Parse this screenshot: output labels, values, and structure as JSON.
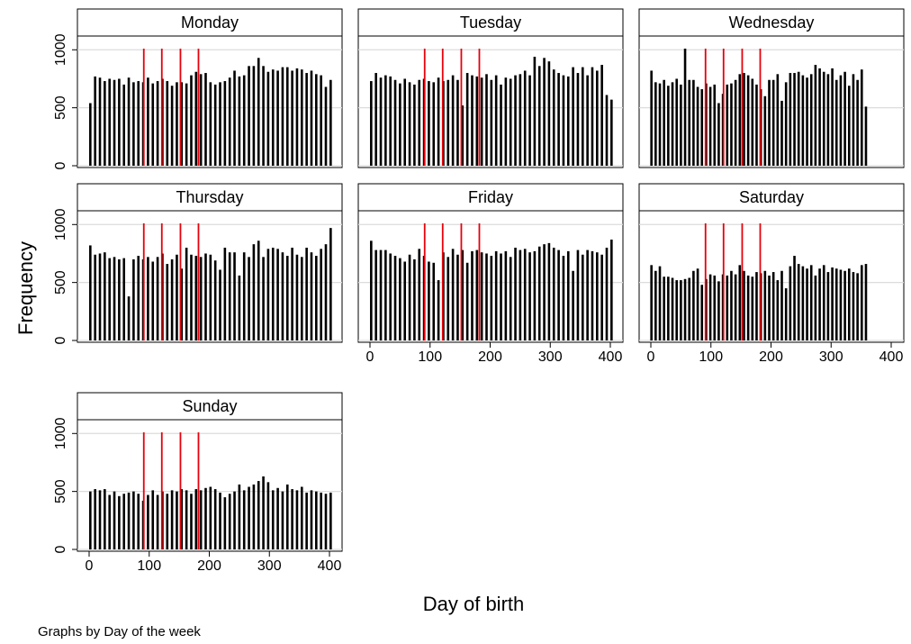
{
  "chart_data": [
    {
      "type": "bar",
      "title": "Monday",
      "color": "#000000",
      "xlim": [
        0,
        400
      ],
      "ylim": [
        0,
        1010
      ],
      "yticks": [
        0,
        500,
        1000
      ],
      "ytick_labels": true,
      "grid": true,
      "vlines": [
        91,
        121,
        152,
        182
      ],
      "vline_color": "#e8000b",
      "x": [
        2,
        10,
        18,
        26,
        34,
        42,
        50,
        58,
        66,
        74,
        82,
        90,
        98,
        106,
        114,
        122,
        130,
        138,
        146,
        154,
        162,
        170,
        178,
        186,
        194,
        202,
        210,
        218,
        226,
        234,
        242,
        250,
        258,
        266,
        274,
        282,
        290,
        298,
        306,
        314,
        322,
        330,
        338,
        346,
        354,
        362,
        370,
        378,
        386,
        394,
        402
      ],
      "values": [
        540,
        770,
        760,
        730,
        750,
        740,
        750,
        700,
        760,
        720,
        730,
        720,
        760,
        710,
        730,
        750,
        730,
        690,
        720,
        720,
        710,
        780,
        810,
        790,
        800,
        720,
        700,
        720,
        730,
        760,
        820,
        770,
        780,
        860,
        860,
        930,
        860,
        810,
        830,
        820,
        850,
        850,
        820,
        840,
        830,
        800,
        820,
        790,
        780,
        680,
        740
      ]
    },
    {
      "type": "bar",
      "title": "Tuesday",
      "color": "#000000",
      "xlim": [
        0,
        400
      ],
      "ylim": [
        0,
        1010
      ],
      "yticks": [
        0,
        500,
        1000
      ],
      "ytick_labels": false,
      "grid": true,
      "vlines": [
        91,
        121,
        152,
        182
      ],
      "vline_color": "#e8000b",
      "x": [
        2,
        10,
        18,
        26,
        34,
        42,
        50,
        58,
        66,
        74,
        82,
        90,
        98,
        106,
        114,
        122,
        130,
        138,
        146,
        154,
        162,
        170,
        178,
        186,
        194,
        202,
        210,
        218,
        226,
        234,
        242,
        250,
        258,
        266,
        274,
        282,
        290,
        298,
        306,
        314,
        322,
        330,
        338,
        346,
        354,
        362,
        370,
        378,
        386,
        394,
        402
      ],
      "values": [
        730,
        800,
        760,
        780,
        770,
        740,
        710,
        750,
        720,
        700,
        740,
        750,
        730,
        720,
        760,
        730,
        740,
        780,
        740,
        520,
        800,
        780,
        770,
        760,
        790,
        740,
        780,
        700,
        760,
        750,
        780,
        790,
        820,
        780,
        940,
        860,
        930,
        900,
        830,
        800,
        780,
        770,
        850,
        800,
        850,
        780,
        850,
        820,
        870,
        610,
        570
      ]
    },
    {
      "type": "bar",
      "title": "Wednesday",
      "color": "#000000",
      "xlim": [
        0,
        400
      ],
      "ylim": [
        0,
        1010
      ],
      "yticks": [
        0,
        500,
        1000
      ],
      "ytick_labels": false,
      "grid": true,
      "vlines": [
        91,
        121,
        152,
        182
      ],
      "vline_color": "#e8000b",
      "x": [
        1,
        8,
        15,
        22,
        29,
        36,
        43,
        50,
        57,
        64,
        71,
        78,
        85,
        92,
        99,
        106,
        113,
        120,
        127,
        134,
        141,
        148,
        155,
        162,
        169,
        176,
        183,
        190,
        197,
        204,
        211,
        218,
        225,
        232,
        239,
        246,
        253,
        260,
        267,
        274,
        281,
        288,
        295,
        302,
        309,
        316,
        323,
        330,
        337,
        344,
        351,
        358
      ],
      "values": [
        820,
        720,
        710,
        740,
        690,
        720,
        750,
        700,
        1010,
        740,
        740,
        680,
        660,
        710,
        680,
        700,
        540,
        620,
        700,
        710,
        740,
        790,
        800,
        780,
        750,
        700,
        660,
        600,
        740,
        740,
        790,
        560,
        720,
        800,
        800,
        810,
        780,
        760,
        790,
        870,
        840,
        810,
        790,
        840,
        740,
        780,
        810,
        690,
        790,
        740,
        830,
        510
      ]
    },
    {
      "type": "bar",
      "title": "Thursday",
      "color": "#000000",
      "xlim": [
        0,
        400
      ],
      "ylim": [
        0,
        1010
      ],
      "yticks": [
        0,
        500,
        1000
      ],
      "ytick_labels": true,
      "grid": true,
      "vlines": [
        91,
        121,
        152,
        182
      ],
      "vline_color": "#e8000b",
      "x": [
        2,
        10,
        18,
        26,
        34,
        42,
        50,
        58,
        66,
        74,
        82,
        90,
        98,
        106,
        114,
        122,
        130,
        138,
        146,
        154,
        162,
        170,
        178,
        186,
        194,
        202,
        210,
        218,
        226,
        234,
        242,
        250,
        258,
        266,
        274,
        282,
        290,
        298,
        306,
        314,
        322,
        330,
        338,
        346,
        354,
        362,
        370,
        378,
        386,
        394,
        402
      ],
      "values": [
        820,
        740,
        750,
        760,
        710,
        720,
        700,
        710,
        380,
        700,
        730,
        700,
        720,
        680,
        720,
        750,
        660,
        700,
        740,
        620,
        800,
        740,
        730,
        720,
        750,
        740,
        690,
        610,
        800,
        760,
        760,
        560,
        760,
        720,
        830,
        860,
        720,
        790,
        800,
        790,
        760,
        730,
        800,
        740,
        720,
        800,
        760,
        730,
        790,
        830,
        970
      ]
    },
    {
      "type": "bar",
      "title": "Friday",
      "color": "#000000",
      "xlim": [
        0,
        400
      ],
      "ylim": [
        0,
        1010
      ],
      "yticks": [
        0,
        500,
        1000
      ],
      "ytick_labels": false,
      "xticks": [
        0,
        100,
        200,
        300,
        400
      ],
      "grid": true,
      "vlines": [
        91,
        121,
        152,
        182
      ],
      "vline_color": "#e8000b",
      "x": [
        2,
        10,
        18,
        26,
        34,
        42,
        50,
        58,
        66,
        74,
        82,
        90,
        98,
        106,
        114,
        122,
        130,
        138,
        146,
        154,
        162,
        170,
        178,
        186,
        194,
        202,
        210,
        218,
        226,
        234,
        242,
        250,
        258,
        266,
        274,
        282,
        290,
        298,
        306,
        314,
        322,
        330,
        338,
        346,
        354,
        362,
        370,
        378,
        386,
        394,
        402
      ],
      "values": [
        860,
        780,
        780,
        780,
        750,
        730,
        710,
        680,
        740,
        700,
        790,
        730,
        680,
        670,
        520,
        760,
        720,
        790,
        740,
        780,
        670,
        770,
        780,
        760,
        750,
        730,
        770,
        750,
        770,
        720,
        800,
        780,
        790,
        760,
        770,
        810,
        830,
        840,
        800,
        780,
        730,
        770,
        600,
        780,
        740,
        780,
        770,
        760,
        740,
        800,
        870
      ]
    },
    {
      "type": "bar",
      "title": "Saturday",
      "color": "#000000",
      "xlim": [
        0,
        400
      ],
      "ylim": [
        0,
        1010
      ],
      "yticks": [
        0,
        500,
        1000
      ],
      "ytick_labels": false,
      "xticks": [
        0,
        100,
        200,
        300,
        400
      ],
      "grid": true,
      "vlines": [
        91,
        121,
        152,
        182
      ],
      "vline_color": "#e8000b",
      "x": [
        1,
        8,
        15,
        22,
        29,
        36,
        43,
        50,
        57,
        64,
        71,
        78,
        85,
        92,
        99,
        106,
        113,
        120,
        127,
        134,
        141,
        148,
        155,
        162,
        169,
        176,
        183,
        190,
        197,
        204,
        211,
        218,
        225,
        232,
        239,
        246,
        253,
        260,
        267,
        274,
        281,
        288,
        295,
        302,
        309,
        316,
        323,
        330,
        337,
        344,
        351,
        358
      ],
      "values": [
        650,
        600,
        640,
        550,
        550,
        540,
        520,
        520,
        530,
        540,
        600,
        620,
        480,
        530,
        570,
        560,
        510,
        570,
        560,
        600,
        570,
        650,
        600,
        560,
        550,
        590,
        580,
        600,
        560,
        590,
        520,
        600,
        450,
        640,
        730,
        660,
        640,
        620,
        650,
        560,
        620,
        650,
        590,
        630,
        620,
        610,
        600,
        620,
        590,
        580,
        650,
        660
      ]
    },
    {
      "type": "bar",
      "title": "Sunday",
      "color": "#000000",
      "xlim": [
        0,
        400
      ],
      "ylim": [
        0,
        1010
      ],
      "yticks": [
        0,
        500,
        1000
      ],
      "ytick_labels": true,
      "xticks": [
        0,
        100,
        200,
        300,
        400
      ],
      "grid": true,
      "vlines": [
        91,
        121,
        152,
        182
      ],
      "vline_color": "#e8000b",
      "x": [
        2,
        10,
        18,
        26,
        34,
        42,
        50,
        58,
        66,
        74,
        82,
        90,
        98,
        106,
        114,
        122,
        130,
        138,
        146,
        154,
        162,
        170,
        178,
        186,
        194,
        202,
        210,
        218,
        226,
        234,
        242,
        250,
        258,
        266,
        274,
        282,
        290,
        298,
        306,
        314,
        322,
        330,
        338,
        346,
        354,
        362,
        370,
        378,
        386,
        394,
        402
      ],
      "values": [
        500,
        520,
        510,
        520,
        470,
        500,
        460,
        480,
        490,
        500,
        480,
        420,
        470,
        510,
        470,
        500,
        480,
        510,
        500,
        520,
        510,
        480,
        520,
        510,
        530,
        540,
        520,
        490,
        450,
        480,
        500,
        560,
        510,
        540,
        560,
        590,
        630,
        580,
        510,
        530,
        500,
        560,
        520,
        510,
        540,
        490,
        510,
        500,
        490,
        480,
        490
      ]
    }
  ],
  "figure": {
    "ylabel": "Frequency",
    "xlabel": "Day of birth",
    "note": "Graphs by Day of the week"
  }
}
